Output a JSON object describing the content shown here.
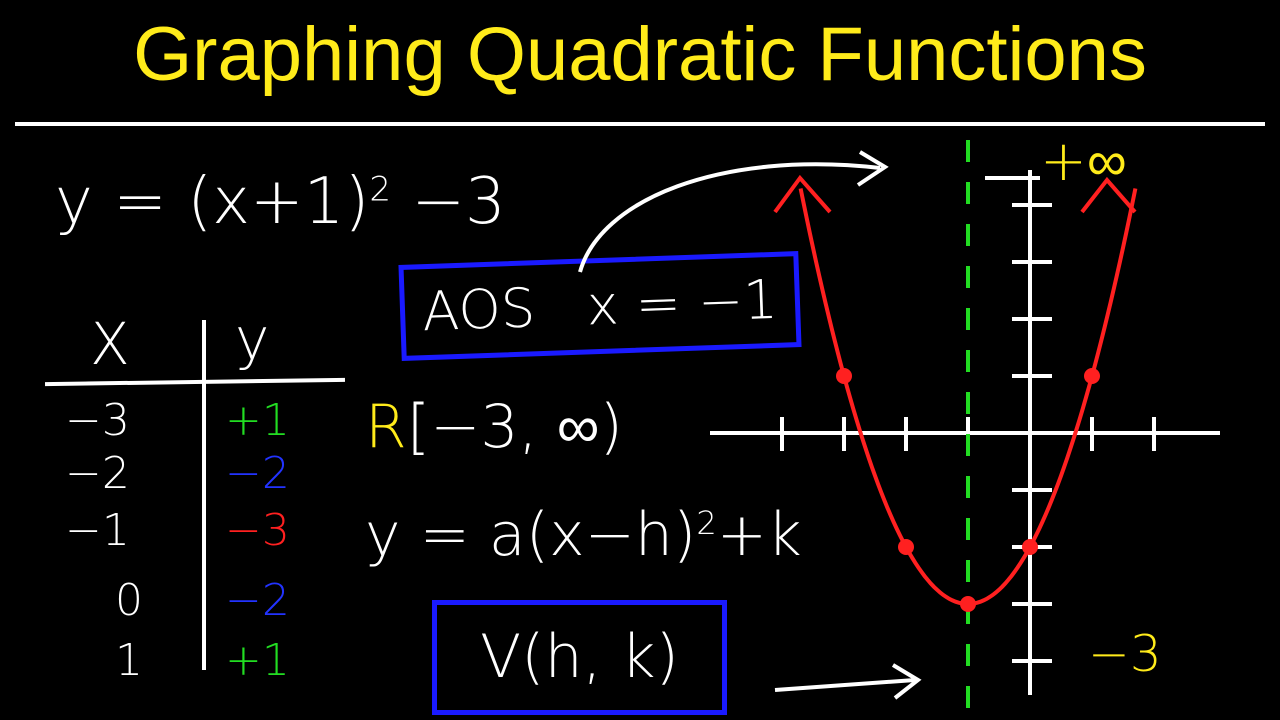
{
  "title": "Graphing Quadratic Functions",
  "equation": {
    "lhs": "y = (x+1)",
    "exp": "2",
    "rhs": " −3"
  },
  "table": {
    "headers": [
      "X",
      "y"
    ],
    "rows": [
      {
        "x": "−3",
        "y": "+1",
        "color": "#22dd22"
      },
      {
        "x": "−2",
        "y": "−2",
        "color": "#2233ff"
      },
      {
        "x": "−1",
        "y": "−3",
        "color": "#ff2020"
      },
      {
        "x": "0",
        "y": "−2",
        "color": "#2233ff"
      },
      {
        "x": "1",
        "y": "+1",
        "color": "#22dd22"
      }
    ]
  },
  "aos": {
    "label": "AOS",
    "value": "x = −1"
  },
  "range": {
    "letter": "R",
    "interval": "[−3, ∞)"
  },
  "vertex_form": {
    "lhs": "y = a(x−h)",
    "exp": "2",
    "rhs": "+k"
  },
  "vertex": "V(h, k)",
  "graph_labels": {
    "top": "+∞",
    "min": "−3"
  },
  "colors": {
    "title": "#ffeb1a",
    "box": "#1a1aff",
    "parabola": "#ff2020",
    "axis_of_symmetry": "#22dd22"
  },
  "chart_data": {
    "type": "line",
    "function": "y = (x+1)^2 - 3",
    "points": [
      [
        -3,
        1
      ],
      [
        -2,
        -2
      ],
      [
        -1,
        -3
      ],
      [
        0,
        -2
      ],
      [
        1,
        1
      ]
    ],
    "vertex": [
      -1,
      -3
    ],
    "axis_of_symmetry": -1,
    "x_ticks": [
      -4,
      -3,
      -2,
      -1,
      1,
      2
    ],
    "y_ticks": [
      -4,
      -3,
      -2,
      -1,
      1,
      2,
      3,
      4
    ]
  }
}
